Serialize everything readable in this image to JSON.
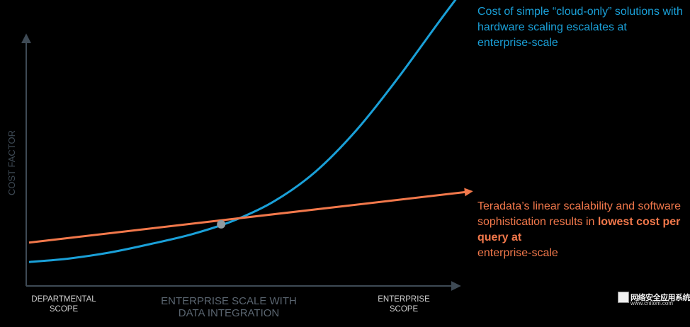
{
  "chart_data": {
    "type": "line",
    "title": "",
    "ylabel": "COST FACTOR",
    "xlabel": "",
    "x_categories": [
      {
        "x": 0,
        "label_lines": [
          "DEPARTMENTAL",
          "SCOPE"
        ],
        "emphasis": "light"
      },
      {
        "x": 0.5,
        "label_lines": [
          "ENTERPRISE SCALE WITH",
          "DATA INTEGRATION"
        ],
        "emphasis": "dim"
      },
      {
        "x": 1,
        "label_lines": [
          "ENTERPRISE",
          "SCOPE"
        ],
        "emphasis": "light"
      }
    ],
    "xlim": [
      0,
      1.14
    ],
    "ylim": [
      0,
      1
    ],
    "grid": false,
    "legend": "none",
    "series": [
      {
        "key": "cloud_only",
        "color": "#1aa0d8",
        "points": [
          [
            0,
            0.04
          ],
          [
            0.1,
            0.055
          ],
          [
            0.2,
            0.08
          ],
          [
            0.3,
            0.115
          ],
          [
            0.4,
            0.155
          ],
          [
            0.5,
            0.21
          ],
          [
            0.6,
            0.29
          ],
          [
            0.7,
            0.41
          ],
          [
            0.8,
            0.58
          ],
          [
            0.9,
            0.79
          ],
          [
            1.0,
            1.02
          ],
          [
            1.08,
            1.2
          ]
        ]
      },
      {
        "key": "teradata",
        "color": "#f2784b",
        "points": [
          [
            0,
            0.12
          ],
          [
            1.08,
            0.33
          ]
        ]
      }
    ],
    "intersection": {
      "x": 0.47,
      "y": 0.195,
      "color": "#8e9aa0"
    }
  },
  "annotations": {
    "cloud": "Cost of simple “cloud-only” solutions with hardware scaling escalates at enterprise-scale",
    "teradata_lead": "Teradata’s linear scalability and software sophistication results in ",
    "teradata_bold": "lowest cost per query at",
    "teradata_tail": "enterprise-scale"
  },
  "colors": {
    "background": "#000000",
    "axis": "#3e4a55",
    "ylabel": "#3e4a55",
    "tick_light": "#d0d0d0",
    "tick_dim": "#5a6570"
  },
  "watermark": {
    "text": "网络安全应用系统",
    "url": "www.cnitom.com"
  }
}
